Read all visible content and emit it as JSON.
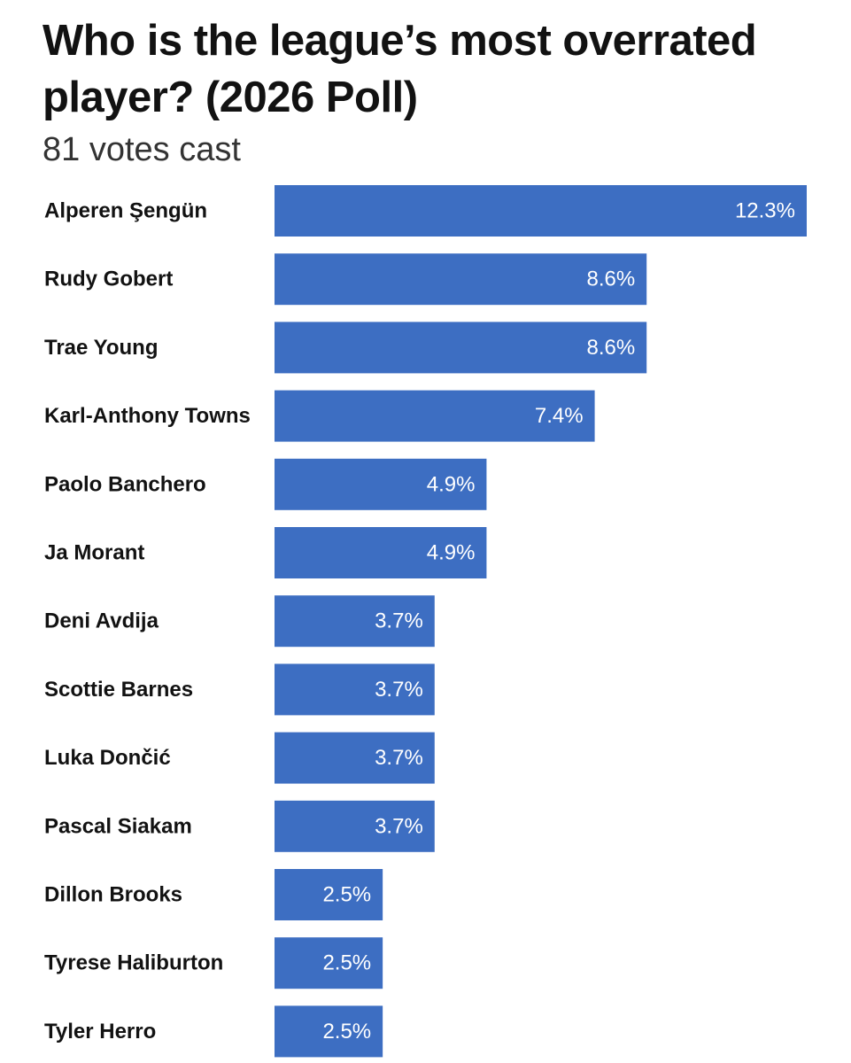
{
  "chart_data": {
    "type": "bar",
    "orientation": "horizontal",
    "title": "Who is the league’s most overrated player? (2026 Poll)",
    "subtitle": "81 votes cast",
    "categories": [
      "Alperen Şengün",
      "Rudy Gobert",
      "Trae Young",
      "Karl-Anthony Towns",
      "Paolo Banchero",
      "Ja Morant",
      "Deni Avdija",
      "Scottie Barnes",
      "Luka Dončić",
      "Pascal Siakam",
      "Dillon Brooks",
      "Tyrese Haliburton",
      "Tyler Herro"
    ],
    "values": [
      12.3,
      8.6,
      8.6,
      7.4,
      4.9,
      4.9,
      3.7,
      3.7,
      3.7,
      3.7,
      2.5,
      2.5,
      2.5
    ],
    "value_labels": [
      "12.3%",
      "8.6%",
      "8.6%",
      "7.4%",
      "4.9%",
      "4.9%",
      "3.7%",
      "3.7%",
      "3.7%",
      "3.7%",
      "2.5%",
      "2.5%",
      "2.5%"
    ],
    "unit": "%",
    "bar_color": "#3d6ec2",
    "grid": false,
    "legend": "none"
  }
}
